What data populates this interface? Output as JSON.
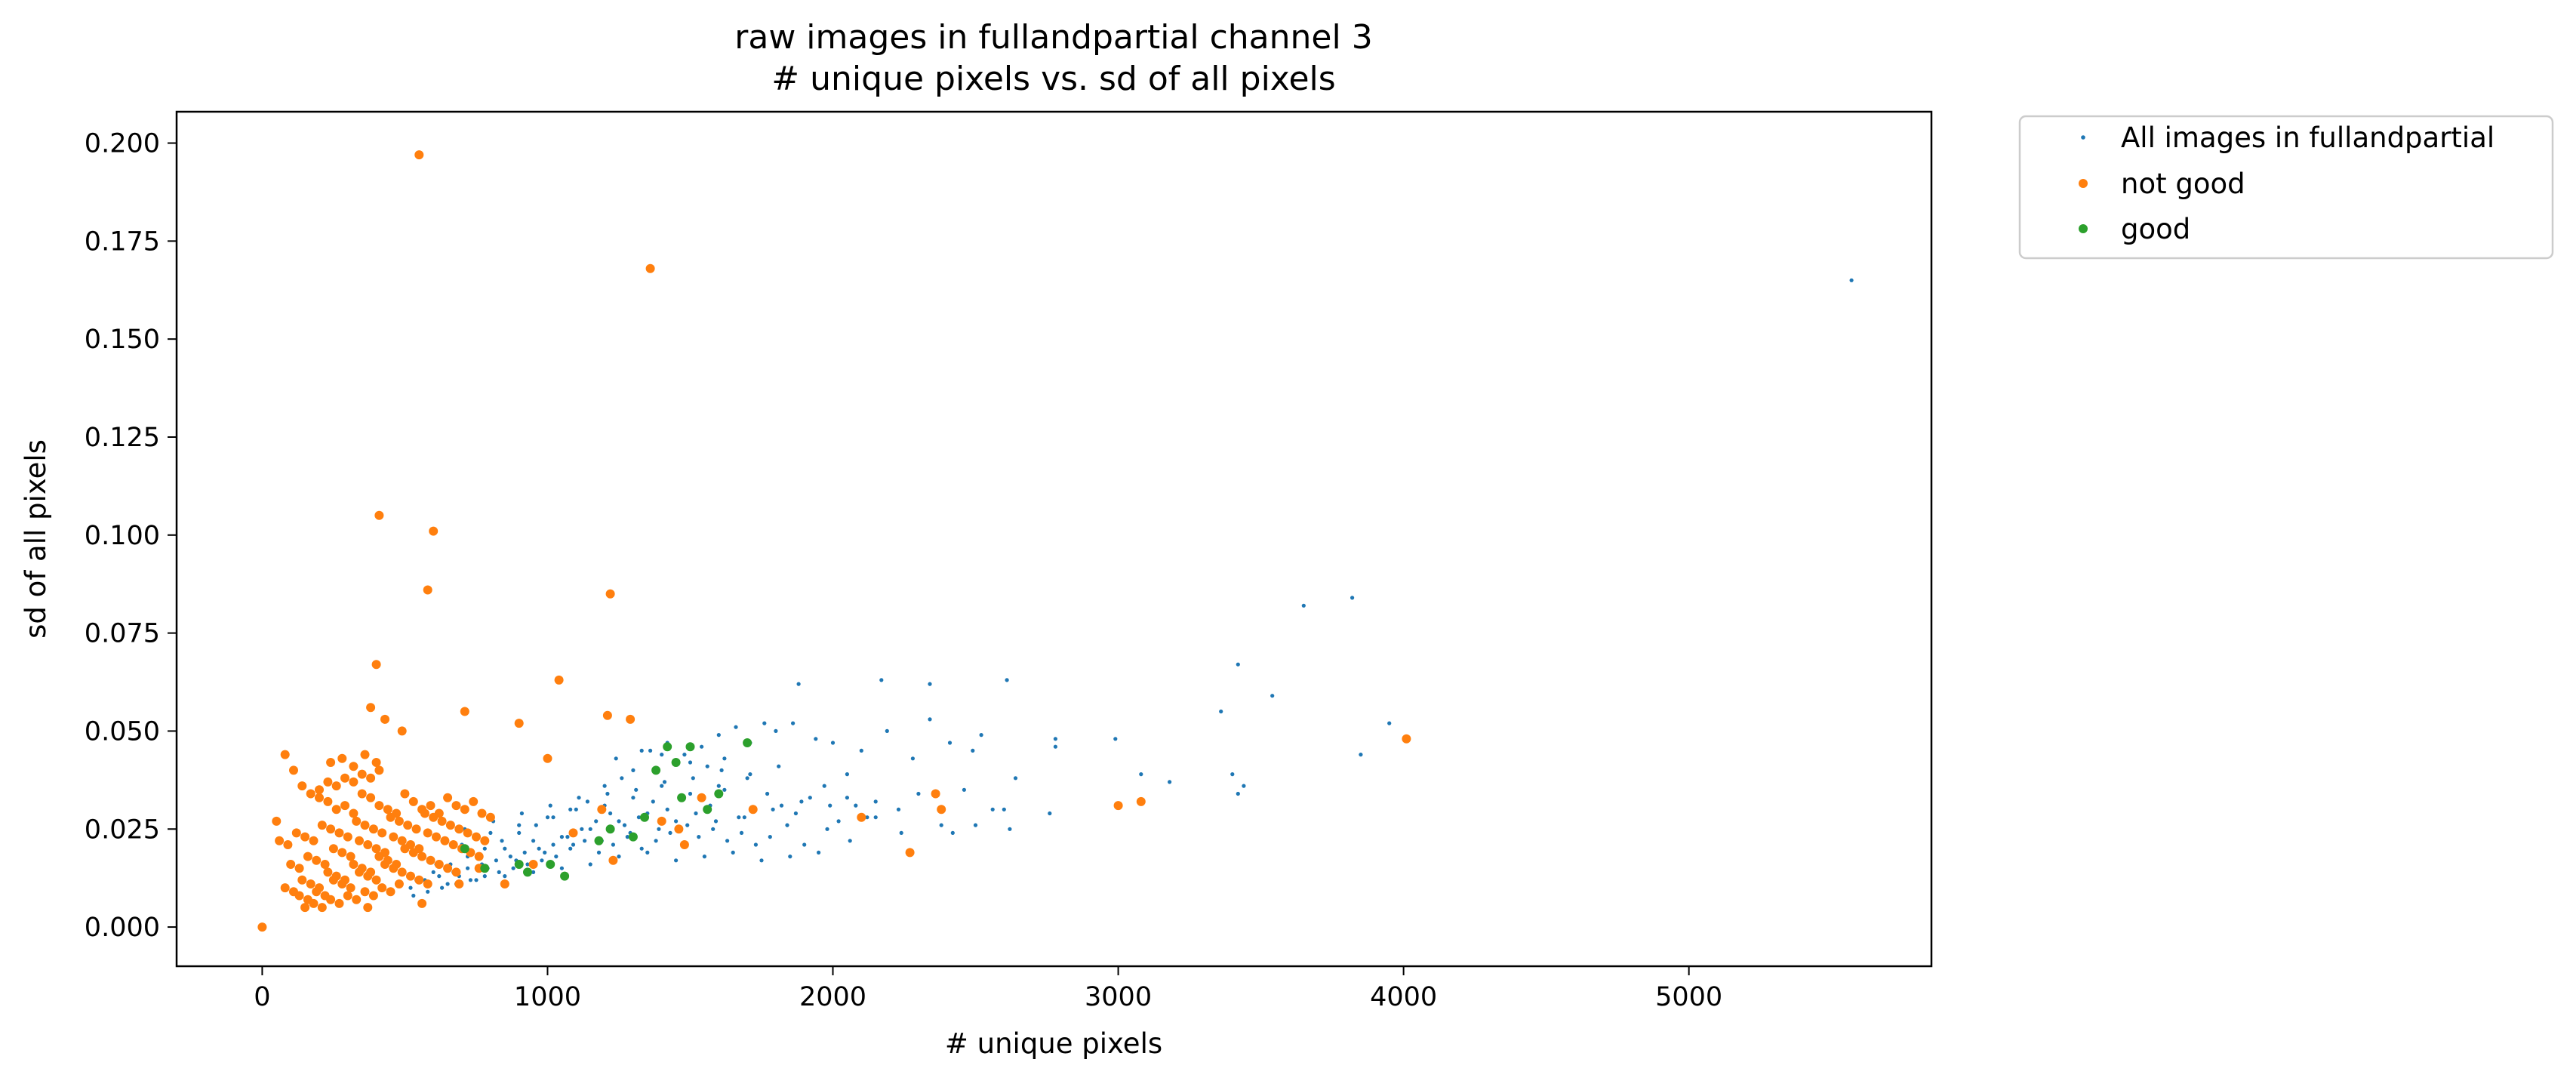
{
  "chart_data": {
    "type": "scatter",
    "title_lines": [
      "raw images in fullandpartial channel 3",
      "# unique pixels vs. sd of all pixels"
    ],
    "xlabel": "# unique pixels",
    "ylabel": "sd of all pixels",
    "xlim": [
      -300,
      5850
    ],
    "ylim": [
      -0.01,
      0.208
    ],
    "x_ticks": [
      0,
      1000,
      2000,
      3000,
      4000,
      5000
    ],
    "x_tick_labels": [
      "0",
      "1000",
      "2000",
      "3000",
      "4000",
      "5000"
    ],
    "y_ticks": [
      0.0,
      0.025,
      0.05,
      0.075,
      0.1,
      0.125,
      0.15,
      0.175,
      0.2
    ],
    "y_tick_labels": [
      "0.000",
      "0.025",
      "0.050",
      "0.075",
      "0.100",
      "0.125",
      "0.150",
      "0.175",
      "0.200"
    ],
    "grid": false,
    "legend_position": "outside-top-right",
    "series": [
      {
        "name": "All images in fullandpartial",
        "color": "#1f77b4",
        "marker": "small-dot",
        "x": [
          5570,
          3650,
          3820,
          3420,
          3540,
          3360,
          2610,
          2170,
          2340,
          1880,
          3950,
          3850,
          3440,
          3420,
          3400,
          3180,
          3080,
          2780,
          2780,
          2640,
          2600,
          2520,
          2490,
          2410,
          2340,
          2280,
          2190,
          2100,
          2000,
          1940,
          1860,
          1800,
          1760,
          1710,
          1660,
          1600,
          1540,
          1480,
          1420,
          1360,
          1300,
          1260,
          1200,
          1140,
          1080,
          1020,
          960,
          900,
          840,
          780,
          720,
          660,
          600,
          540,
          480,
          2990,
          2760,
          2560,
          2460,
          2380,
          2300,
          2230,
          2150,
          2080,
          2020,
          1970,
          1920,
          1870,
          1820,
          1770,
          1720,
          1670,
          1620,
          1570,
          1520,
          1470,
          1420,
          1370,
          1320,
          1270,
          1220,
          1170,
          1120,
          1070,
          1020,
          970,
          920,
          870,
          820,
          770,
          720,
          670,
          620,
          570,
          520,
          2240,
          2120,
          2060,
          1980,
          1900,
          1840,
          1780,
          1730,
          1680,
          1630,
          1580,
          1530,
          1480,
          1430,
          1380,
          1330,
          1280,
          1230,
          1180,
          1130,
          1080,
          1030,
          980,
          930,
          880,
          830,
          780,
          730,
          680,
          630,
          580,
          530,
          1950,
          1850,
          1750,
          1650,
          1550,
          1450,
          1350,
          1250,
          1150,
          1050,
          950,
          850,
          750,
          650,
          1700,
          1600,
          1500,
          1400,
          1300,
          1200,
          1100,
          1000,
          900,
          800,
          700,
          1450,
          1350,
          1250,
          1150,
          1050,
          950,
          850,
          1810,
          1710,
          1610,
          1510,
          1410,
          1310,
          1210,
          1110,
          1010,
          910,
          810,
          710,
          610,
          2050,
          1990,
          1890,
          1790,
          1690,
          1590,
          1490,
          1390,
          1290,
          1190,
          1090,
          990,
          890,
          790,
          690,
          2620,
          2500,
          2420,
          2050,
          2150,
          1560,
          1620,
          1500,
          1400,
          1330,
          1240
        ],
        "y": [
          0.165,
          0.082,
          0.084,
          0.067,
          0.059,
          0.055,
          0.063,
          0.063,
          0.062,
          0.062,
          0.052,
          0.044,
          0.036,
          0.034,
          0.039,
          0.037,
          0.039,
          0.046,
          0.048,
          0.038,
          0.03,
          0.049,
          0.045,
          0.047,
          0.053,
          0.043,
          0.05,
          0.045,
          0.047,
          0.048,
          0.052,
          0.05,
          0.052,
          0.047,
          0.051,
          0.049,
          0.046,
          0.044,
          0.047,
          0.045,
          0.04,
          0.038,
          0.036,
          0.032,
          0.03,
          0.028,
          0.026,
          0.024,
          0.022,
          0.02,
          0.018,
          0.016,
          0.014,
          0.012,
          0.011,
          0.048,
          0.029,
          0.03,
          0.035,
          0.026,
          0.034,
          0.03,
          0.028,
          0.031,
          0.027,
          0.036,
          0.033,
          0.029,
          0.031,
          0.034,
          0.03,
          0.028,
          0.035,
          0.031,
          0.029,
          0.033,
          0.03,
          0.032,
          0.028,
          0.026,
          0.029,
          0.027,
          0.025,
          0.023,
          0.021,
          0.02,
          0.019,
          0.018,
          0.017,
          0.016,
          0.015,
          0.014,
          0.013,
          0.012,
          0.01,
          0.024,
          0.028,
          0.022,
          0.025,
          0.021,
          0.026,
          0.023,
          0.021,
          0.024,
          0.022,
          0.025,
          0.023,
          0.021,
          0.024,
          0.022,
          0.02,
          0.023,
          0.021,
          0.019,
          0.022,
          0.02,
          0.018,
          0.017,
          0.016,
          0.015,
          0.014,
          0.013,
          0.012,
          0.011,
          0.01,
          0.009,
          0.008,
          0.019,
          0.018,
          0.017,
          0.019,
          0.018,
          0.017,
          0.019,
          0.018,
          0.016,
          0.015,
          0.014,
          0.013,
          0.012,
          0.011,
          0.038,
          0.036,
          0.034,
          0.036,
          0.033,
          0.031,
          0.03,
          0.028,
          0.026,
          0.024,
          0.021,
          0.027,
          0.029,
          0.027,
          0.025,
          0.023,
          0.022,
          0.02,
          0.041,
          0.039,
          0.04,
          0.038,
          0.037,
          0.035,
          0.034,
          0.033,
          0.031,
          0.029,
          0.027,
          0.025,
          0.016,
          0.033,
          0.031,
          0.032,
          0.03,
          0.028,
          0.027,
          0.026,
          0.025,
          0.024,
          0.022,
          0.021,
          0.019,
          0.017,
          0.015,
          0.013,
          0.025,
          0.026,
          0.024,
          0.039,
          0.032,
          0.041,
          0.043,
          0.042,
          0.044,
          0.045,
          0.043
        ]
      },
      {
        "name": "not good",
        "color": "#ff7f0e",
        "marker": "dot",
        "x": [
          550,
          1360,
          410,
          600,
          580,
          1220,
          400,
          1040,
          380,
          430,
          490,
          710,
          900,
          1210,
          1290,
          1000,
          0,
          50,
          80,
          110,
          140,
          170,
          200,
          230,
          260,
          290,
          320,
          350,
          380,
          410,
          440,
          470,
          500,
          530,
          560,
          590,
          620,
          650,
          680,
          710,
          740,
          770,
          800,
          60,
          90,
          120,
          150,
          180,
          210,
          240,
          270,
          300,
          330,
          360,
          390,
          420,
          450,
          480,
          510,
          540,
          570,
          600,
          630,
          660,
          690,
          720,
          750,
          780,
          100,
          130,
          160,
          190,
          220,
          250,
          280,
          310,
          340,
          370,
          400,
          430,
          460,
          490,
          520,
          550,
          580,
          610,
          640,
          670,
          700,
          730,
          760,
          80,
          110,
          140,
          170,
          200,
          230,
          260,
          290,
          320,
          350,
          380,
          410,
          440,
          470,
          500,
          530,
          560,
          590,
          620,
          650,
          680,
          130,
          160,
          190,
          220,
          250,
          280,
          310,
          340,
          370,
          400,
          430,
          460,
          490,
          520,
          550,
          580,
          150,
          180,
          210,
          240,
          270,
          300,
          330,
          360,
          390,
          420,
          450,
          480,
          200,
          230,
          260,
          290,
          320,
          350,
          380,
          410,
          240,
          280,
          320,
          360,
          400,
          4010,
          3080,
          3000,
          2380,
          2360,
          2270,
          2100,
          1720,
          1540,
          1480,
          1460,
          1400,
          1230,
          1190,
          1090,
          950,
          850,
          760,
          690,
          560,
          370
        ],
        "y": [
          0.197,
          0.168,
          0.105,
          0.101,
          0.086,
          0.085,
          0.067,
          0.063,
          0.056,
          0.053,
          0.05,
          0.055,
          0.052,
          0.054,
          0.053,
          0.043,
          0.0,
          0.027,
          0.044,
          0.04,
          0.036,
          0.034,
          0.033,
          0.032,
          0.03,
          0.031,
          0.029,
          0.034,
          0.033,
          0.031,
          0.03,
          0.029,
          0.034,
          0.032,
          0.03,
          0.031,
          0.029,
          0.033,
          0.031,
          0.03,
          0.032,
          0.029,
          0.028,
          0.022,
          0.021,
          0.024,
          0.023,
          0.022,
          0.026,
          0.025,
          0.024,
          0.023,
          0.027,
          0.026,
          0.025,
          0.024,
          0.028,
          0.027,
          0.026,
          0.025,
          0.029,
          0.028,
          0.027,
          0.026,
          0.025,
          0.024,
          0.023,
          0.022,
          0.016,
          0.015,
          0.018,
          0.017,
          0.016,
          0.02,
          0.019,
          0.018,
          0.022,
          0.021,
          0.02,
          0.019,
          0.023,
          0.022,
          0.021,
          0.02,
          0.024,
          0.023,
          0.022,
          0.021,
          0.02,
          0.019,
          0.018,
          0.01,
          0.009,
          0.012,
          0.011,
          0.01,
          0.014,
          0.013,
          0.012,
          0.016,
          0.015,
          0.014,
          0.018,
          0.017,
          0.016,
          0.02,
          0.019,
          0.018,
          0.017,
          0.016,
          0.015,
          0.014,
          0.008,
          0.007,
          0.009,
          0.008,
          0.012,
          0.011,
          0.01,
          0.014,
          0.013,
          0.012,
          0.016,
          0.015,
          0.014,
          0.013,
          0.012,
          0.011,
          0.005,
          0.006,
          0.005,
          0.007,
          0.006,
          0.008,
          0.007,
          0.009,
          0.008,
          0.01,
          0.009,
          0.011,
          0.035,
          0.037,
          0.036,
          0.038,
          0.037,
          0.039,
          0.038,
          0.04,
          0.042,
          0.043,
          0.041,
          0.044,
          0.042,
          0.048,
          0.032,
          0.031,
          0.03,
          0.034,
          0.019,
          0.028,
          0.03,
          0.033,
          0.021,
          0.025,
          0.027,
          0.017,
          0.03,
          0.024,
          0.016,
          0.011,
          0.015,
          0.011,
          0.006,
          0.005
        ]
      },
      {
        "name": "good",
        "color": "#2ca02c",
        "marker": "dot",
        "x": [
          1420,
          1500,
          1450,
          1700,
          1600,
          1560,
          1380,
          1300,
          1220,
          1060,
          1010,
          930,
          710,
          780,
          900,
          1340,
          1470,
          1180
        ],
        "y": [
          0.046,
          0.046,
          0.042,
          0.047,
          0.034,
          0.03,
          0.04,
          0.023,
          0.025,
          0.013,
          0.016,
          0.014,
          0.02,
          0.015,
          0.016,
          0.028,
          0.033,
          0.022
        ]
      }
    ]
  }
}
